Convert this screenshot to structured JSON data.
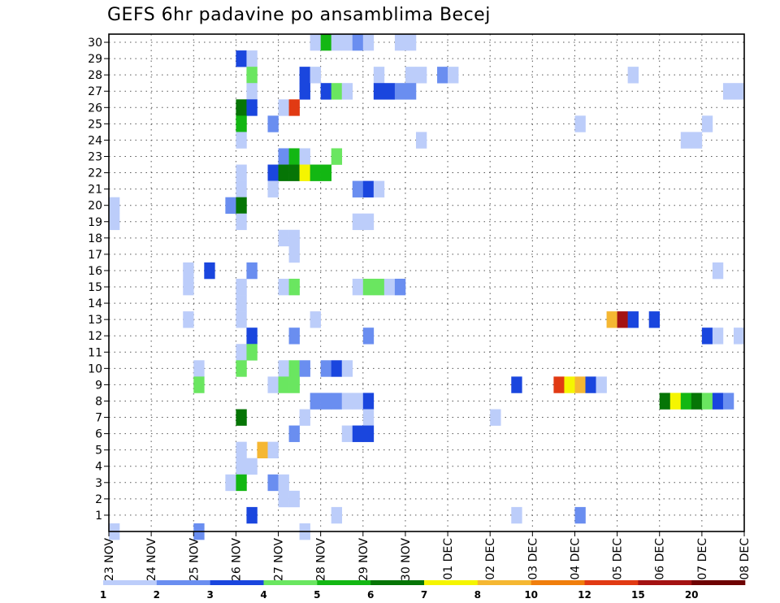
{
  "chart_data": {
    "type": "heatmap",
    "title": "GEFS 6hr padavine po ansamblima Becej",
    "xlabel": "",
    "ylabel": "",
    "x_unit": "days since 23 NOV 00z",
    "xlim": [
      0,
      15
    ],
    "ylim": [
      0,
      30
    ],
    "x_ticks": [
      {
        "label": "23 NOV",
        "x": 0
      },
      {
        "label": "24 NOV",
        "x": 1
      },
      {
        "label": "25 NOV",
        "x": 2
      },
      {
        "label": "26 NOV",
        "x": 3
      },
      {
        "label": "27 NOV",
        "x": 4
      },
      {
        "label": "28 NOV",
        "x": 5
      },
      {
        "label": "29 NOV",
        "x": 6
      },
      {
        "label": "30 NOV",
        "x": 7
      },
      {
        "label": "01 DEC",
        "x": 8
      },
      {
        "label": "02 DEC",
        "x": 9
      },
      {
        "label": "03 DEC",
        "x": 10
      },
      {
        "label": "04 DEC",
        "x": 11
      },
      {
        "label": "05 DEC",
        "x": 12
      },
      {
        "label": "06 DEC",
        "x": 13
      },
      {
        "label": "07 DEC",
        "x": 14
      },
      {
        "label": "08 DEC",
        "x": 15
      }
    ],
    "y_ticks": [
      "1",
      "2",
      "3",
      "4",
      "5",
      "6",
      "7",
      "8",
      "9",
      "10",
      "11",
      "12",
      "13",
      "14",
      "15",
      "16",
      "17",
      "18",
      "19",
      "20",
      "21",
      "22",
      "23",
      "24",
      "25",
      "26",
      "27",
      "28",
      "29",
      "30"
    ],
    "legend": {
      "position": "bottom",
      "colors": [
        "#bccdfa",
        "#6a8ef0",
        "#1a46de",
        "#6ae660",
        "#13b713",
        "#067506",
        "#f5f500",
        "#f5b732",
        "#f07e0c",
        "#e13a13",
        "#a41212",
        "#6e0303"
      ],
      "labels": [
        "1",
        "2",
        "3",
        "4",
        "5",
        "6",
        "7",
        "8",
        "10",
        "12",
        "15",
        "20"
      ]
    },
    "cells": [
      {
        "member": 30,
        "step": 19,
        "value": 1.5
      },
      {
        "member": 30,
        "step": 20,
        "value": 5
      },
      {
        "member": 30,
        "step": 21,
        "value": 1.5
      },
      {
        "member": 30,
        "step": 22,
        "value": 1.5
      },
      {
        "member": 30,
        "step": 23,
        "value": 2.5
      },
      {
        "member": 30,
        "step": 24,
        "value": 1.5
      },
      {
        "member": 30,
        "step": 27,
        "value": 1.5
      },
      {
        "member": 30,
        "step": 28,
        "value": 1.5
      },
      {
        "member": 29,
        "step": 12,
        "value": 3.5
      },
      {
        "member": 29,
        "step": 13,
        "value": 1.5
      },
      {
        "member": 28,
        "step": 13,
        "value": 4.5
      },
      {
        "member": 28,
        "step": 18,
        "value": 3.5
      },
      {
        "member": 28,
        "step": 19,
        "value": 1.5
      },
      {
        "member": 28,
        "step": 25,
        "value": 1.5
      },
      {
        "member": 28,
        "step": 28,
        "value": 1.5
      },
      {
        "member": 28,
        "step": 29,
        "value": 1.5
      },
      {
        "member": 28,
        "step": 31,
        "value": 2.5
      },
      {
        "member": 28,
        "step": 32,
        "value": 1.5
      },
      {
        "member": 28,
        "step": 49,
        "value": 1.5
      },
      {
        "member": 27,
        "step": 13,
        "value": 1.5
      },
      {
        "member": 27,
        "step": 18,
        "value": 3.5
      },
      {
        "member": 27,
        "step": 20,
        "value": 3.5
      },
      {
        "member": 27,
        "step": 21,
        "value": 4.5
      },
      {
        "member": 27,
        "step": 22,
        "value": 1.5
      },
      {
        "member": 27,
        "step": 25,
        "value": 3.5
      },
      {
        "member": 27,
        "step": 26,
        "value": 3.5
      },
      {
        "member": 27,
        "step": 27,
        "value": 2.5
      },
      {
        "member": 27,
        "step": 28,
        "value": 2.5
      },
      {
        "member": 27,
        "step": 58,
        "value": 1.5
      },
      {
        "member": 27,
        "step": 59,
        "value": 1.5
      },
      {
        "member": 26,
        "step": 12,
        "value": 6.5
      },
      {
        "member": 26,
        "step": 13,
        "value": 3.5
      },
      {
        "member": 26,
        "step": 16,
        "value": 1.5
      },
      {
        "member": 26,
        "step": 17,
        "value": 13
      },
      {
        "member": 25,
        "step": 12,
        "value": 5.5
      },
      {
        "member": 25,
        "step": 15,
        "value": 2.5
      },
      {
        "member": 25,
        "step": 44,
        "value": 1.5
      },
      {
        "member": 25,
        "step": 56,
        "value": 1.5
      },
      {
        "member": 24,
        "step": 12,
        "value": 1.5
      },
      {
        "member": 24,
        "step": 29,
        "value": 1.5
      },
      {
        "member": 24,
        "step": 54,
        "value": 1.5
      },
      {
        "member": 24,
        "step": 55,
        "value": 1.5
      },
      {
        "member": 23,
        "step": 16,
        "value": 2.5
      },
      {
        "member": 23,
        "step": 17,
        "value": 5.5
      },
      {
        "member": 23,
        "step": 18,
        "value": 1.5
      },
      {
        "member": 23,
        "step": 21,
        "value": 4.5
      },
      {
        "member": 22,
        "step": 12,
        "value": 1.5
      },
      {
        "member": 22,
        "step": 15,
        "value": 3.5
      },
      {
        "member": 22,
        "step": 16,
        "value": 6.5
      },
      {
        "member": 22,
        "step": 17,
        "value": 6.5
      },
      {
        "member": 22,
        "step": 18,
        "value": 7.5
      },
      {
        "member": 22,
        "step": 19,
        "value": 5.5
      },
      {
        "member": 22,
        "step": 20,
        "value": 5.5
      },
      {
        "member": 21,
        "step": 12,
        "value": 1.5
      },
      {
        "member": 21,
        "step": 15,
        "value": 1.5
      },
      {
        "member": 21,
        "step": 23,
        "value": 2.5
      },
      {
        "member": 21,
        "step": 24,
        "value": 3.5
      },
      {
        "member": 21,
        "step": 25,
        "value": 1.5
      },
      {
        "member": 20,
        "step": 0,
        "value": 1.5
      },
      {
        "member": 20,
        "step": 11,
        "value": 2.5
      },
      {
        "member": 20,
        "step": 12,
        "value": 6.5
      },
      {
        "member": 19,
        "step": 0,
        "value": 1.5
      },
      {
        "member": 19,
        "step": 12,
        "value": 1.5
      },
      {
        "member": 19,
        "step": 23,
        "value": 1.5
      },
      {
        "member": 19,
        "step": 24,
        "value": 1.5
      },
      {
        "member": 18,
        "step": 16,
        "value": 1.5
      },
      {
        "member": 18,
        "step": 17,
        "value": 1.5
      },
      {
        "member": 17,
        "step": 17,
        "value": 1.5
      },
      {
        "member": 16,
        "step": 7,
        "value": 1.5
      },
      {
        "member": 16,
        "step": 9,
        "value": 3.5
      },
      {
        "member": 16,
        "step": 13,
        "value": 2.5
      },
      {
        "member": 16,
        "step": 57,
        "value": 1.5
      },
      {
        "member": 15,
        "step": 7,
        "value": 1.5
      },
      {
        "member": 15,
        "step": 12,
        "value": 1.5
      },
      {
        "member": 15,
        "step": 16,
        "value": 1.5
      },
      {
        "member": 15,
        "step": 17,
        "value": 4.5
      },
      {
        "member": 15,
        "step": 23,
        "value": 1.5
      },
      {
        "member": 15,
        "step": 24,
        "value": 4.5
      },
      {
        "member": 15,
        "step": 25,
        "value": 4.5
      },
      {
        "member": 15,
        "step": 26,
        "value": 1.5
      },
      {
        "member": 15,
        "step": 27,
        "value": 2.5
      },
      {
        "member": 14,
        "step": 12,
        "value": 1.5
      },
      {
        "member": 13,
        "step": 7,
        "value": 1.5
      },
      {
        "member": 13,
        "step": 12,
        "value": 1.5
      },
      {
        "member": 13,
        "step": 19,
        "value": 1.5
      },
      {
        "member": 13,
        "step": 47,
        "value": 9
      },
      {
        "member": 13,
        "step": 48,
        "value": 17
      },
      {
        "member": 13,
        "step": 49,
        "value": 3.5
      },
      {
        "member": 13,
        "step": 51,
        "value": 3.5
      },
      {
        "member": 12,
        "step": 13,
        "value": 3.5
      },
      {
        "member": 12,
        "step": 17,
        "value": 2.5
      },
      {
        "member": 12,
        "step": 24,
        "value": 2.5
      },
      {
        "member": 12,
        "step": 56,
        "value": 3.5
      },
      {
        "member": 12,
        "step": 57,
        "value": 1.5
      },
      {
        "member": 12,
        "step": 59,
        "value": 1.5
      },
      {
        "member": 11,
        "step": 12,
        "value": 1.5
      },
      {
        "member": 11,
        "step": 13,
        "value": 4.5
      },
      {
        "member": 10,
        "step": 8,
        "value": 1.5
      },
      {
        "member": 10,
        "step": 12,
        "value": 4.5
      },
      {
        "member": 10,
        "step": 16,
        "value": 1.5
      },
      {
        "member": 10,
        "step": 17,
        "value": 4.5
      },
      {
        "member": 10,
        "step": 18,
        "value": 2.5
      },
      {
        "member": 10,
        "step": 20,
        "value": 2.5
      },
      {
        "member": 10,
        "step": 21,
        "value": 3.5
      },
      {
        "member": 10,
        "step": 22,
        "value": 1.5
      },
      {
        "member": 9,
        "step": 8,
        "value": 4.5
      },
      {
        "member": 9,
        "step": 15,
        "value": 1.5
      },
      {
        "member": 9,
        "step": 16,
        "value": 4.5
      },
      {
        "member": 9,
        "step": 17,
        "value": 4.5
      },
      {
        "member": 9,
        "step": 38,
        "value": 3.5
      },
      {
        "member": 9,
        "step": 42,
        "value": 13
      },
      {
        "member": 9,
        "step": 43,
        "value": 7.5
      },
      {
        "member": 9,
        "step": 44,
        "value": 9
      },
      {
        "member": 9,
        "step": 45,
        "value": 3.5
      },
      {
        "member": 9,
        "step": 46,
        "value": 1.5
      },
      {
        "member": 8,
        "step": 19,
        "value": 2.5
      },
      {
        "member": 8,
        "step": 20,
        "value": 2.5
      },
      {
        "member": 8,
        "step": 21,
        "value": 2.5
      },
      {
        "member": 8,
        "step": 22,
        "value": 1.5
      },
      {
        "member": 8,
        "step": 23,
        "value": 1.5
      },
      {
        "member": 8,
        "step": 24,
        "value": 3.5
      },
      {
        "member": 8,
        "step": 52,
        "value": 6.5
      },
      {
        "member": 8,
        "step": 53,
        "value": 7.5
      },
      {
        "member": 8,
        "step": 54,
        "value": 5.5
      },
      {
        "member": 8,
        "step": 55,
        "value": 6.5
      },
      {
        "member": 8,
        "step": 56,
        "value": 4.5
      },
      {
        "member": 8,
        "step": 57,
        "value": 3.5
      },
      {
        "member": 8,
        "step": 58,
        "value": 2.5
      },
      {
        "member": 7,
        "step": 12,
        "value": 6.5
      },
      {
        "member": 7,
        "step": 18,
        "value": 1.5
      },
      {
        "member": 7,
        "step": 24,
        "value": 1.5
      },
      {
        "member": 7,
        "step": 36,
        "value": 1.5
      },
      {
        "member": 6,
        "step": 17,
        "value": 2.5
      },
      {
        "member": 6,
        "step": 22,
        "value": 1.5
      },
      {
        "member": 6,
        "step": 23,
        "value": 3.5
      },
      {
        "member": 6,
        "step": 24,
        "value": 3.5
      },
      {
        "member": 5,
        "step": 12,
        "value": 1.5
      },
      {
        "member": 5,
        "step": 14,
        "value": 9
      },
      {
        "member": 5,
        "step": 15,
        "value": 1.5
      },
      {
        "member": 4,
        "step": 12,
        "value": 1.5
      },
      {
        "member": 4,
        "step": 13,
        "value": 1.5
      },
      {
        "member": 3,
        "step": 11,
        "value": 1.5
      },
      {
        "member": 3,
        "step": 12,
        "value": 5.5
      },
      {
        "member": 3,
        "step": 15,
        "value": 2.5
      },
      {
        "member": 3,
        "step": 16,
        "value": 1.5
      },
      {
        "member": 2,
        "step": 16,
        "value": 1.5
      },
      {
        "member": 2,
        "step": 17,
        "value": 1.5
      },
      {
        "member": 1,
        "step": 13,
        "value": 3.5
      },
      {
        "member": 1,
        "step": 21,
        "value": 1.5
      },
      {
        "member": 1,
        "step": 38,
        "value": 1.5
      },
      {
        "member": 1,
        "step": 44,
        "value": 2.5
      },
      {
        "member": 0,
        "step": 0,
        "value": 1.5
      },
      {
        "member": 0,
        "step": 8,
        "value": 2.5
      },
      {
        "member": 0,
        "step": 18,
        "value": 1.5
      }
    ]
  }
}
